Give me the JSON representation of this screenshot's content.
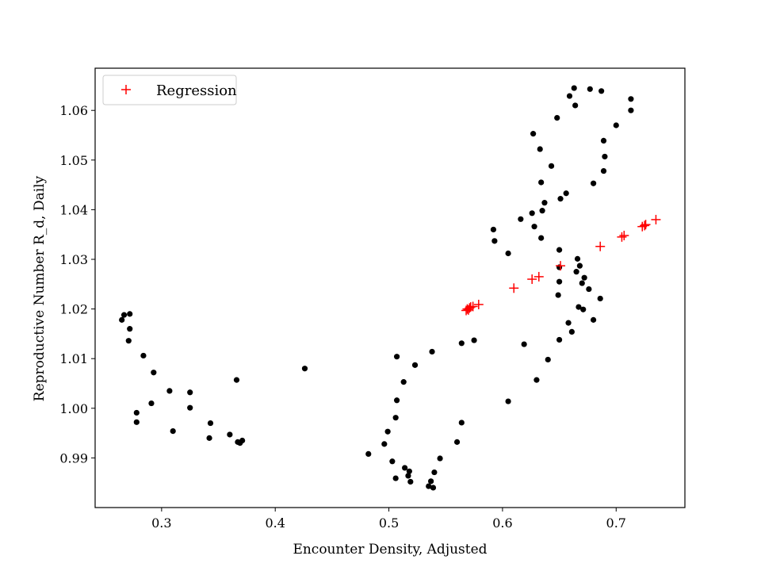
{
  "chart_data": {
    "type": "scatter",
    "title": "",
    "xlabel": "Encounter Density, Adjusted",
    "ylabel": "Reproductive Number R_d, Daily",
    "xlim": [
      0.2415,
      0.7605
    ],
    "ylim": [
      0.98,
      1.0685
    ],
    "x_ticks": [
      0.3,
      0.4,
      0.5,
      0.6,
      0.7
    ],
    "x_tick_labels": [
      "0.3",
      "0.4",
      "0.5",
      "0.6",
      "0.7"
    ],
    "y_ticks": [
      0.99,
      1.0,
      1.01,
      1.02,
      1.03,
      1.04,
      1.05,
      1.06
    ],
    "y_tick_labels": [
      "0.99",
      "1.00",
      "1.01",
      "1.02",
      "1.03",
      "1.04",
      "1.05",
      "1.06"
    ],
    "grid": false,
    "legend": {
      "placement": "upper-left",
      "entries": [
        {
          "label": "Regression",
          "marker": "plus",
          "color": "#ff0000"
        }
      ]
    },
    "series": [
      {
        "name": "Observed",
        "marker": "dot",
        "color": "#000000",
        "in_legend": false,
        "points": [
          [
            0.265,
            1.0178
          ],
          [
            0.267,
            1.0188
          ],
          [
            0.272,
            1.019
          ],
          [
            0.272,
            1.016
          ],
          [
            0.271,
            1.0136
          ],
          [
            0.284,
            1.0106
          ],
          [
            0.293,
            1.0072
          ],
          [
            0.278,
            0.9991
          ],
          [
            0.278,
            0.9972
          ],
          [
            0.291,
            1.001
          ],
          [
            0.307,
            1.0035
          ],
          [
            0.31,
            0.9954
          ],
          [
            0.325,
            1.0032
          ],
          [
            0.325,
            1.0001
          ],
          [
            0.342,
            0.994
          ],
          [
            0.343,
            0.997
          ],
          [
            0.36,
            0.9947
          ],
          [
            0.366,
            1.0057
          ],
          [
            0.367,
            0.9932
          ],
          [
            0.369,
            0.993
          ],
          [
            0.371,
            0.9935
          ],
          [
            0.426,
            1.008
          ],
          [
            0.482,
            0.9908
          ],
          [
            0.496,
            0.9928
          ],
          [
            0.499,
            0.9953
          ],
          [
            0.503,
            0.9893
          ],
          [
            0.506,
            0.9981
          ],
          [
            0.507,
            1.0016
          ],
          [
            0.507,
            1.0104
          ],
          [
            0.506,
            0.9859
          ],
          [
            0.513,
            1.0053
          ],
          [
            0.514,
            0.988
          ],
          [
            0.517,
            0.9864
          ],
          [
            0.518,
            0.9873
          ],
          [
            0.519,
            0.9852
          ],
          [
            0.523,
            1.0087
          ],
          [
            0.535,
            0.9843
          ],
          [
            0.537,
            0.9853
          ],
          [
            0.538,
            1.0114
          ],
          [
            0.539,
            0.984
          ],
          [
            0.54,
            0.9871
          ],
          [
            0.545,
            0.9899
          ],
          [
            0.56,
            0.9932
          ],
          [
            0.564,
            0.9971
          ],
          [
            0.564,
            1.0131
          ],
          [
            0.575,
            1.0137
          ],
          [
            0.592,
            1.036
          ],
          [
            0.593,
            1.0337
          ],
          [
            0.605,
            1.0312
          ],
          [
            0.605,
            1.0014
          ],
          [
            0.616,
            1.0381
          ],
          [
            0.619,
            1.0129
          ],
          [
            0.626,
            1.0393
          ],
          [
            0.627,
            1.0553
          ],
          [
            0.628,
            1.0366
          ],
          [
            0.63,
            1.0057
          ],
          [
            0.633,
            1.0522
          ],
          [
            0.634,
            1.0455
          ],
          [
            0.634,
            1.0343
          ],
          [
            0.635,
            1.0398
          ],
          [
            0.637,
            1.0414
          ],
          [
            0.64,
            1.0098
          ],
          [
            0.643,
            1.0488
          ],
          [
            0.648,
            1.0585
          ],
          [
            0.649,
            1.0228
          ],
          [
            0.65,
            1.0255
          ],
          [
            0.65,
            1.0138
          ],
          [
            0.65,
            1.0319
          ],
          [
            0.65,
            1.0284
          ],
          [
            0.651,
            1.0422
          ],
          [
            0.656,
            1.0433
          ],
          [
            0.658,
            1.0172
          ],
          [
            0.659,
            1.0629
          ],
          [
            0.661,
            1.0154
          ],
          [
            0.663,
            1.0645
          ],
          [
            0.664,
            1.061
          ],
          [
            0.665,
            1.0275
          ],
          [
            0.666,
            1.0301
          ],
          [
            0.667,
            1.0204
          ],
          [
            0.668,
            1.0287
          ],
          [
            0.67,
            1.0252
          ],
          [
            0.671,
            1.0199
          ],
          [
            0.672,
            1.0263
          ],
          [
            0.676,
            1.024
          ],
          [
            0.677,
            1.0643
          ],
          [
            0.68,
            1.0453
          ],
          [
            0.68,
            1.0178
          ],
          [
            0.686,
            1.0221
          ],
          [
            0.687,
            1.0639
          ],
          [
            0.689,
            1.0478
          ],
          [
            0.689,
            1.0539
          ],
          [
            0.69,
            1.0507
          ],
          [
            0.7,
            1.057
          ],
          [
            0.713,
            1.0623
          ],
          [
            0.713,
            1.06
          ]
        ]
      },
      {
        "name": "Regression",
        "marker": "plus",
        "color": "#ff0000",
        "in_legend": true,
        "points": [
          [
            0.568,
            1.0197
          ],
          [
            0.569,
            1.02
          ],
          [
            0.57,
            1.0198
          ],
          [
            0.571,
            1.0202
          ],
          [
            0.572,
            1.0204
          ],
          [
            0.574,
            1.0205
          ],
          [
            0.579,
            1.0209
          ],
          [
            0.61,
            1.0242
          ],
          [
            0.626,
            1.026
          ],
          [
            0.632,
            1.0265
          ],
          [
            0.651,
            1.0287
          ],
          [
            0.686,
            1.0326
          ],
          [
            0.705,
            1.0345
          ],
          [
            0.707,
            1.0348
          ],
          [
            0.723,
            1.0366
          ],
          [
            0.725,
            1.0368
          ],
          [
            0.726,
            1.037
          ],
          [
            0.735,
            1.038
          ]
        ]
      }
    ]
  }
}
